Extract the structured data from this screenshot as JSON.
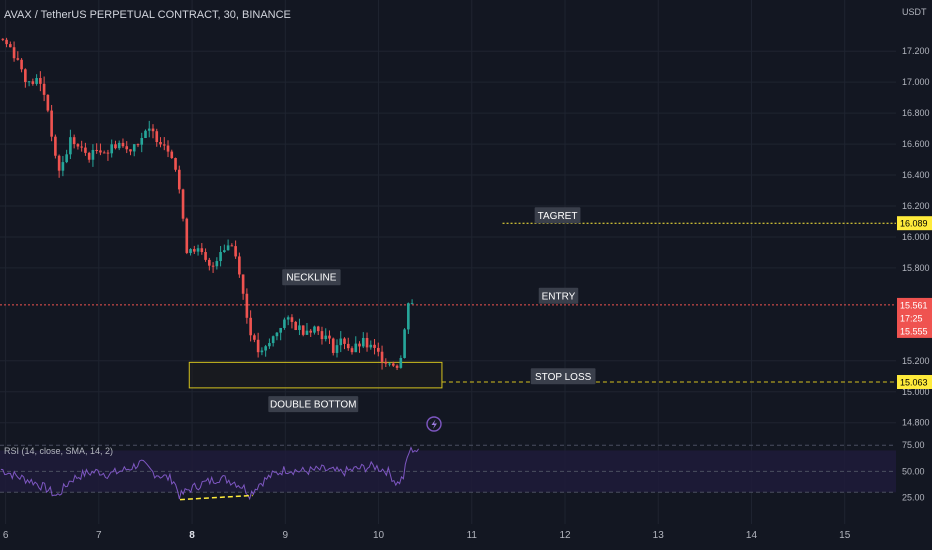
{
  "header": {
    "title": "AVAX / TetherUS PERPETUAL CONTRACT, 30, BINANCE",
    "currency": "USDT"
  },
  "colors": {
    "background": "#131722",
    "up": "#26a69a",
    "down": "#ef5350",
    "rsi_line": "#7e57c2",
    "rsi_band": "#1e1b3a",
    "target_line": "#ffeb3b",
    "zone_border": "#d4c21e",
    "grid": "#1f2430",
    "text": "#b2b5be"
  },
  "chart_data": {
    "type": "candlestick",
    "y_axis": {
      "ticks": [
        "17.200",
        "17.000",
        "16.800",
        "16.600",
        "16.400",
        "16.200",
        "16.000",
        "15.800",
        "15.200",
        "15.000",
        "14.800"
      ],
      "tick_values": [
        17.2,
        17.0,
        16.8,
        16.6,
        16.4,
        16.2,
        16.0,
        15.8,
        15.2,
        15.0,
        14.8
      ],
      "ylim": [
        14.74,
        17.35
      ]
    },
    "x_axis": {
      "ticks": [
        "6",
        "7",
        "8",
        "9",
        "10",
        "11",
        "12",
        "13",
        "14",
        "15"
      ],
      "tick_values": [
        6,
        7,
        8,
        9,
        10,
        11,
        12,
        13,
        14,
        15
      ],
      "xlim": [
        5.94,
        15.55
      ],
      "bold_ticks": [
        "8"
      ]
    },
    "price_anchors": [
      [
        5.95,
        17.28
      ],
      [
        6.06,
        17.22
      ],
      [
        6.15,
        17.12
      ],
      [
        6.25,
        16.98
      ],
      [
        6.32,
        17.02
      ],
      [
        6.4,
        16.96
      ],
      [
        6.47,
        16.78
      ],
      [
        6.55,
        16.42
      ],
      [
        6.62,
        16.48
      ],
      [
        6.7,
        16.64
      ],
      [
        6.8,
        16.56
      ],
      [
        6.92,
        16.52
      ],
      [
        7.0,
        16.58
      ],
      [
        7.1,
        16.55
      ],
      [
        7.2,
        16.62
      ],
      [
        7.3,
        16.56
      ],
      [
        7.45,
        16.64
      ],
      [
        7.55,
        16.68
      ],
      [
        7.68,
        16.62
      ],
      [
        7.78,
        16.55
      ],
      [
        7.85,
        16.38
      ],
      [
        7.9,
        16.1
      ],
      [
        7.95,
        15.9
      ],
      [
        8.0,
        15.95
      ],
      [
        8.1,
        15.88
      ],
      [
        8.2,
        15.78
      ],
      [
        8.3,
        15.92
      ],
      [
        8.42,
        15.96
      ],
      [
        8.5,
        15.82
      ],
      [
        8.58,
        15.5
      ],
      [
        8.68,
        15.28
      ],
      [
        8.75,
        15.24
      ],
      [
        8.82,
        15.3
      ],
      [
        8.9,
        15.38
      ],
      [
        8.98,
        15.46
      ],
      [
        9.08,
        15.44
      ],
      [
        9.18,
        15.4
      ],
      [
        9.3,
        15.42
      ],
      [
        9.42,
        15.36
      ],
      [
        9.52,
        15.28
      ],
      [
        9.62,
        15.34
      ],
      [
        9.72,
        15.26
      ],
      [
        9.82,
        15.32
      ],
      [
        9.92,
        15.28
      ],
      [
        10.0,
        15.24
      ],
      [
        10.1,
        15.2
      ],
      [
        10.18,
        15.16
      ],
      [
        10.26,
        15.24
      ],
      [
        10.3,
        15.55
      ],
      [
        10.33,
        15.62
      ],
      [
        10.38,
        15.56
      ]
    ],
    "candle_count": 110,
    "last_price": 15.561,
    "levels": [
      {
        "name": "TAGRET",
        "value": 16.089,
        "label": "16.089",
        "style": "dotted",
        "color": "#ffeb3b",
        "x_start": 11.33
      },
      {
        "name": "ENTRY",
        "value": 15.561,
        "label": "15.561",
        "style": "dotted",
        "color": "#ef5350",
        "x_start": 5.94
      },
      {
        "name": "STOP LOSS",
        "value": 15.063,
        "label": "15.063",
        "style": "dashed",
        "color": "#d4c21e",
        "x_start": 10.68
      }
    ],
    "countdown": "17:25",
    "second_price": "15.555",
    "zone": {
      "x_from": 7.97,
      "x_to": 10.68,
      "y_from": 15.025,
      "y_to": 15.19,
      "label": "DOUBLE BOTTOM"
    },
    "annotations": [
      {
        "text": "NECKLINE",
        "x": 9.28,
        "y": 15.74
      },
      {
        "text": "DOUBLE BOTTOM",
        "x": 9.3,
        "y": 14.92
      },
      {
        "text": "TAGRET",
        "x": 11.92,
        "y": 16.14
      },
      {
        "text": "ENTRY",
        "x": 11.93,
        "y": 15.62
      },
      {
        "text": "STOP LOSS",
        "x": 11.98,
        "y": 15.1
      }
    ],
    "rsi": {
      "title": "RSI (14, close, SMA, 14, 2)",
      "ticks": [
        "75.00",
        "50.00",
        "25.00"
      ],
      "tick_values": [
        75,
        50,
        25
      ],
      "ylim": [
        15,
        80
      ],
      "band": [
        30,
        70
      ],
      "anchors": [
        [
          5.95,
          52
        ],
        [
          6.1,
          46
        ],
        [
          6.3,
          40
        ],
        [
          6.45,
          33
        ],
        [
          6.55,
          26
        ],
        [
          6.7,
          42
        ],
        [
          6.85,
          48
        ],
        [
          7.0,
          50
        ],
        [
          7.1,
          47
        ],
        [
          7.3,
          52
        ],
        [
          7.45,
          58
        ],
        [
          7.6,
          48
        ],
        [
          7.8,
          42
        ],
        [
          7.87,
          26
        ],
        [
          7.95,
          32
        ],
        [
          8.1,
          38
        ],
        [
          8.3,
          44
        ],
        [
          8.45,
          40
        ],
        [
          8.55,
          35
        ],
        [
          8.62,
          28
        ],
        [
          8.72,
          38
        ],
        [
          8.85,
          46
        ],
        [
          9.0,
          52
        ],
        [
          9.2,
          50
        ],
        [
          9.4,
          52
        ],
        [
          9.6,
          49
        ],
        [
          9.8,
          53
        ],
        [
          9.95,
          55
        ],
        [
          10.1,
          50
        ],
        [
          10.2,
          38
        ],
        [
          10.27,
          45
        ],
        [
          10.32,
          68
        ],
        [
          10.38,
          72
        ],
        [
          10.43,
          68
        ]
      ],
      "divergence": {
        "x_from": 7.87,
        "y_from": 23,
        "x_to": 8.65,
        "y_to": 27
      }
    }
  }
}
